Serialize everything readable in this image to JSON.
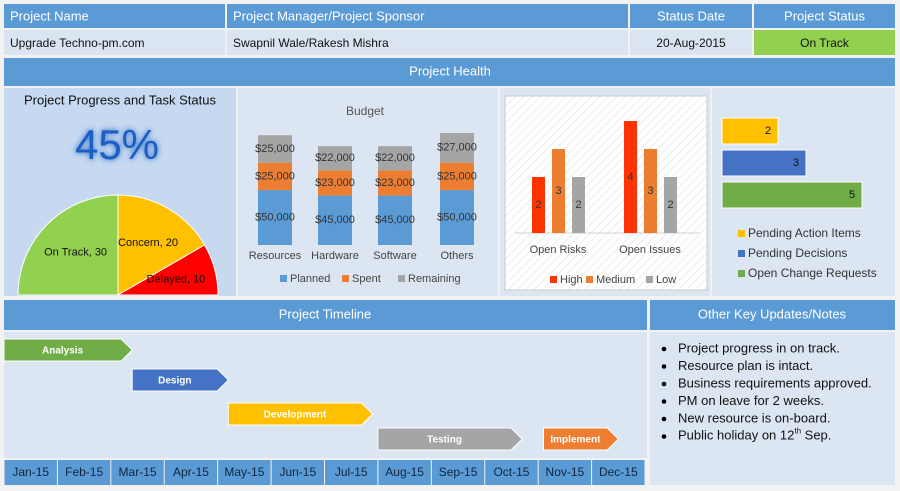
{
  "header": {
    "columns": [
      "Project Name",
      "Project Manager/Project Sponsor",
      "Status Date",
      "Project Status"
    ],
    "row": [
      "Upgrade Techno-pm.com",
      "Swapnil Wale/Rakesh Mishra",
      "20-Aug-2015",
      "On Track"
    ]
  },
  "health_title": "Project Health",
  "chart_data": [
    {
      "type": "pie",
      "title": "Project Progress and Task Status",
      "progress": {
        "value": 45,
        "label": "45%"
      },
      "values": [
        30,
        20,
        10
      ],
      "value_labels": [
        "On Track, 30",
        "Concern, 20",
        "Delayed, 10"
      ],
      "colors": [
        "#92d050",
        "#ffc000",
        "#ff0000"
      ]
    },
    {
      "type": "stacked_bar",
      "title": "Budget",
      "categories": [
        "Resources",
        "Hardware",
        "Software",
        "Others"
      ],
      "series": [
        {
          "name": "Planned",
          "color": "#5b9bd5",
          "values": [
            50000,
            45000,
            45000,
            50000
          ],
          "value_labels": [
            "$50,000",
            "$45,000",
            "$45,000",
            "$50,000"
          ]
        },
        {
          "name": "Spent",
          "color": "#ed7d31",
          "values": [
            25000,
            23000,
            23000,
            25000
          ],
          "value_labels": [
            "$25,000",
            "$23,000",
            "$23,000",
            "$25,000"
          ]
        },
        {
          "name": "Remaining",
          "color": "#a5a5a5",
          "values": [
            25000,
            22000,
            22000,
            27000
          ],
          "value_labels": [
            "$25,000",
            "$22,000",
            "$22,000",
            "$27,000"
          ]
        }
      ]
    },
    {
      "type": "grouped_bar",
      "categories": [
        "Open Risks",
        "Open Issues"
      ],
      "series": [
        {
          "name": "High",
          "color": "#ff3300",
          "values": [
            2,
            4
          ]
        },
        {
          "name": "Medium",
          "color": "#ed7d31",
          "values": [
            3,
            3
          ]
        },
        {
          "name": "Low",
          "color": "#a5a5a5",
          "values": [
            2,
            2
          ]
        }
      ]
    },
    {
      "type": "hbar",
      "categories": [
        "Pending Action Items",
        "Pending Decisions",
        "Open Change Requests"
      ],
      "values": [
        2,
        3,
        5
      ],
      "colors": [
        "#ffc000",
        "#4472c4",
        "#70ad47"
      ]
    },
    {
      "type": "gantt",
      "title": "Project Timeline",
      "categories": [
        "Jan-15",
        "Feb-15",
        "Mar-15",
        "Apr-15",
        "May-15",
        "Jun-15",
        "Jul-15",
        "Aug-15",
        "Sep-15",
        "Oct-15",
        "Nov-15",
        "Dec-15"
      ],
      "tasks": [
        {
          "name": "Analysis",
          "start": 0,
          "end": 2.4,
          "color": "#70ad47"
        },
        {
          "name": "Design",
          "start": 2.4,
          "end": 4.2,
          "color": "#4472c4"
        },
        {
          "name": "Development",
          "start": 4.2,
          "end": 6.9,
          "color": "#ffc000"
        },
        {
          "name": "Testing",
          "start": 7,
          "end": 9.7,
          "color": "#a5a5a5"
        },
        {
          "name": "Implement",
          "start": 10.1,
          "end": 11.5,
          "color": "#ed7d31"
        }
      ]
    }
  ],
  "notes": {
    "title": "Other Key Updates/Notes",
    "items": [
      "Project progress in on track.",
      "Resource plan is intact.",
      "Business requirements approved.",
      "PM on leave for 2 weeks.",
      "New resource is on-board.",
      {
        "text": "Public holiday on 12",
        "sup": "th",
        "tail": " Sep."
      }
    ]
  }
}
